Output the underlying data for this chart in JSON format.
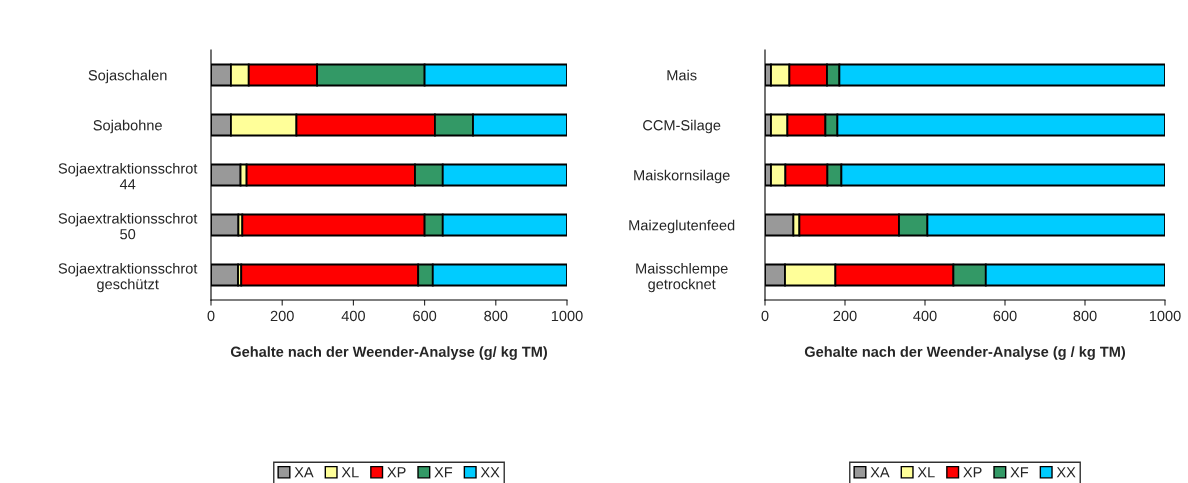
{
  "chart_data": [
    {
      "type": "bar",
      "orientation": "horizontal",
      "stacked": true,
      "categories": [
        "Sojaschalen",
        "Sojabohne",
        "Sojaextraktionsschrot\n44",
        "Sojaextraktionsschrot\n50",
        "Sojaextraktionsschrot\ngeschützt"
      ],
      "series": [
        {
          "name": "XA",
          "color": "#999999",
          "values": [
            56,
            56,
            83,
            77,
            76
          ]
        },
        {
          "name": "XL",
          "color": "#ffff99",
          "values": [
            50,
            184,
            17,
            11,
            9
          ]
        },
        {
          "name": "XP",
          "color": "#ff0000",
          "values": [
            192,
            389,
            473,
            512,
            497
          ]
        },
        {
          "name": "XF",
          "color": "#339966",
          "values": [
            302,
            107,
            78,
            51,
            41
          ]
        },
        {
          "name": "XX",
          "color": "#00ccff",
          "values": [
            400,
            264,
            349,
            349,
            377
          ]
        }
      ],
      "xlim": [
        0,
        1000
      ],
      "xticks": [
        0,
        200,
        400,
        600,
        800,
        1000
      ],
      "xlabel": "Gehalte nach der Weender-Analyse (g/ kg TM)",
      "grid": false,
      "legend": "bottom"
    },
    {
      "type": "bar",
      "orientation": "horizontal",
      "stacked": true,
      "categories": [
        "Mais",
        "CCM-Silage",
        "Maiskornsilage",
        "Maizeglutenfeed",
        "Maisschlempe\ngetrocknet"
      ],
      "series": [
        {
          "name": "XA",
          "color": "#999999",
          "values": [
            15,
            15,
            15,
            71,
            50
          ]
        },
        {
          "name": "XL",
          "color": "#ffff99",
          "values": [
            46,
            41,
            36,
            15,
            126
          ]
        },
        {
          "name": "XP",
          "color": "#ff0000",
          "values": [
            94,
            95,
            105,
            249,
            295
          ]
        },
        {
          "name": "XF",
          "color": "#339966",
          "values": [
            31,
            30,
            35,
            71,
            81
          ]
        },
        {
          "name": "XX",
          "color": "#00ccff",
          "values": [
            814,
            819,
            809,
            594,
            448
          ]
        }
      ],
      "xlim": [
        0,
        1000
      ],
      "xticks": [
        0,
        200,
        400,
        600,
        800,
        1000
      ],
      "xlabel": "Gehalte nach der Weender-Analyse (g / kg TM)",
      "grid": false,
      "legend": "bottom"
    }
  ]
}
